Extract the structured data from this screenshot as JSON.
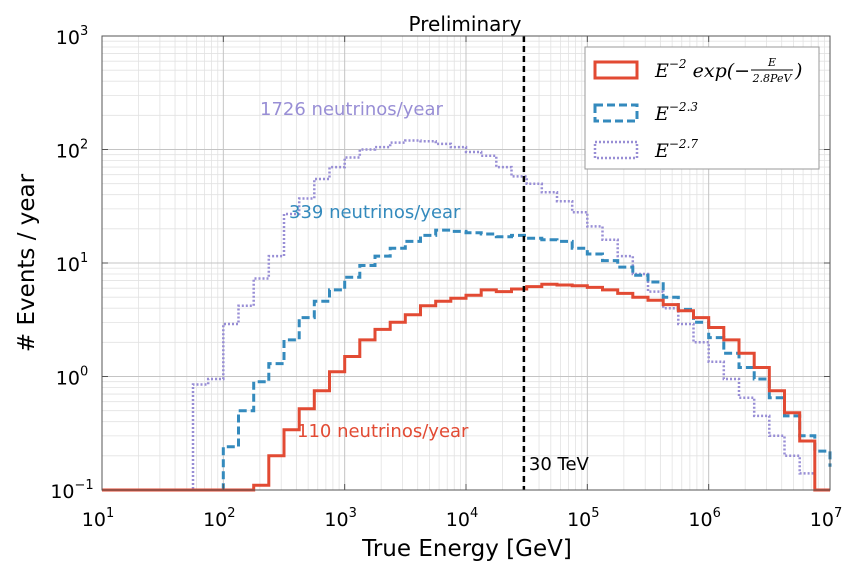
{
  "chart_data": {
    "type": "line",
    "title": "Preliminary",
    "xlabel": "True Energy [GeV]",
    "ylabel": "# Events / year",
    "x_scale": "log",
    "y_scale": "log",
    "xlim": [
      10,
      10000000
    ],
    "ylim": [
      0.1,
      1000
    ],
    "grid": true,
    "legend_position": "top-right",
    "x_ticks": [
      {
        "base": "10",
        "exp": "1"
      },
      {
        "base": "10",
        "exp": "2"
      },
      {
        "base": "10",
        "exp": "3"
      },
      {
        "base": "10",
        "exp": "4"
      },
      {
        "base": "10",
        "exp": "5"
      },
      {
        "base": "10",
        "exp": "6"
      },
      {
        "base": "10",
        "exp": "7"
      }
    ],
    "y_ticks": [
      {
        "base": "10",
        "exp": "−1"
      },
      {
        "base": "10",
        "exp": "0"
      },
      {
        "base": "10",
        "exp": "1"
      },
      {
        "base": "10",
        "exp": "2"
      },
      {
        "base": "10",
        "exp": "3"
      }
    ],
    "bin_edges_log10": [
      1.0,
      1.125,
      1.25,
      1.375,
      1.5,
      1.625,
      1.75,
      1.875,
      2.0,
      2.125,
      2.25,
      2.375,
      2.5,
      2.625,
      2.75,
      2.875,
      3.0,
      3.125,
      3.25,
      3.375,
      3.5,
      3.625,
      3.75,
      3.875,
      4.0,
      4.125,
      4.25,
      4.375,
      4.5,
      4.625,
      4.75,
      4.875,
      5.0,
      5.125,
      5.25,
      5.375,
      5.5,
      5.625,
      5.75,
      5.875,
      6.0,
      6.125,
      6.25,
      6.375,
      6.5,
      6.625,
      6.75,
      6.875,
      7.0
    ],
    "series": [
      {
        "name": "E^-2 exp(-E/2.8PeV)",
        "label_parts": {
          "base": "E",
          "exp": "−2",
          "func": "exp(−",
          "num": "E",
          "den": "2.8PeV",
          "close": ")"
        },
        "color": "#e24a33",
        "style": "solid",
        "annotation": "110 neutrinos/year",
        "values": [
          0.1,
          0.1,
          0.1,
          0.1,
          0.1,
          0.1,
          0.1,
          0.1,
          0.1,
          0.1,
          0.11,
          0.2,
          0.34,
          0.52,
          0.75,
          1.1,
          1.5,
          2.1,
          2.6,
          3.0,
          3.5,
          4.2,
          4.6,
          4.9,
          5.2,
          5.8,
          5.6,
          5.9,
          6.2,
          6.5,
          6.4,
          6.3,
          6.1,
          5.8,
          5.4,
          5.0,
          4.7,
          4.3,
          3.8,
          3.3,
          2.7,
          2.1,
          1.6,
          1.2,
          0.75,
          0.48,
          0.27,
          0.1,
          0.1
        ]
      },
      {
        "name": "E^-2.3",
        "label_parts": {
          "base": "E",
          "exp": "−2.3"
        },
        "color": "#348abd",
        "style": "dashed",
        "annotation": "339 neutrinos/year",
        "values": [
          0.1,
          0.1,
          0.1,
          0.1,
          0.1,
          0.1,
          0.1,
          0.1,
          0.24,
          0.5,
          0.9,
          1.3,
          2.1,
          3.3,
          4.6,
          5.8,
          7.5,
          9.5,
          11.5,
          13.5,
          15.5,
          17.5,
          19.5,
          19.0,
          18.5,
          18.0,
          17.0,
          17.5,
          16.5,
          16.0,
          15.5,
          13.5,
          12.0,
          10.5,
          9.2,
          7.8,
          6.8,
          5.0,
          3.9,
          3.0,
          2.2,
          1.6,
          1.2,
          0.95,
          0.65,
          0.45,
          0.3,
          0.22,
          0.16
        ]
      },
      {
        "name": "E^-2.7",
        "label_parts": {
          "base": "E",
          "exp": "−2.7"
        },
        "color": "#988ed5",
        "style": "dotted",
        "annotation": "1726 neutrinos/year",
        "values": [
          0.1,
          0.1,
          0.1,
          0.1,
          0.1,
          0.1,
          0.85,
          0.95,
          2.9,
          4.2,
          7.3,
          11.5,
          27,
          37,
          55,
          70,
          85,
          100,
          105,
          115,
          120,
          118,
          112,
          105,
          95,
          88,
          70,
          58,
          50,
          42,
          35,
          28,
          21,
          16,
          11.5,
          8.0,
          5.6,
          4.0,
          2.9,
          2.0,
          1.35,
          0.95,
          0.65,
          0.45,
          0.3,
          0.2,
          0.14,
          0.1,
          0.1
        ]
      }
    ],
    "vline": {
      "x": 30000,
      "label": "30 TeV",
      "style": "dashed",
      "color": "#000000"
    }
  }
}
